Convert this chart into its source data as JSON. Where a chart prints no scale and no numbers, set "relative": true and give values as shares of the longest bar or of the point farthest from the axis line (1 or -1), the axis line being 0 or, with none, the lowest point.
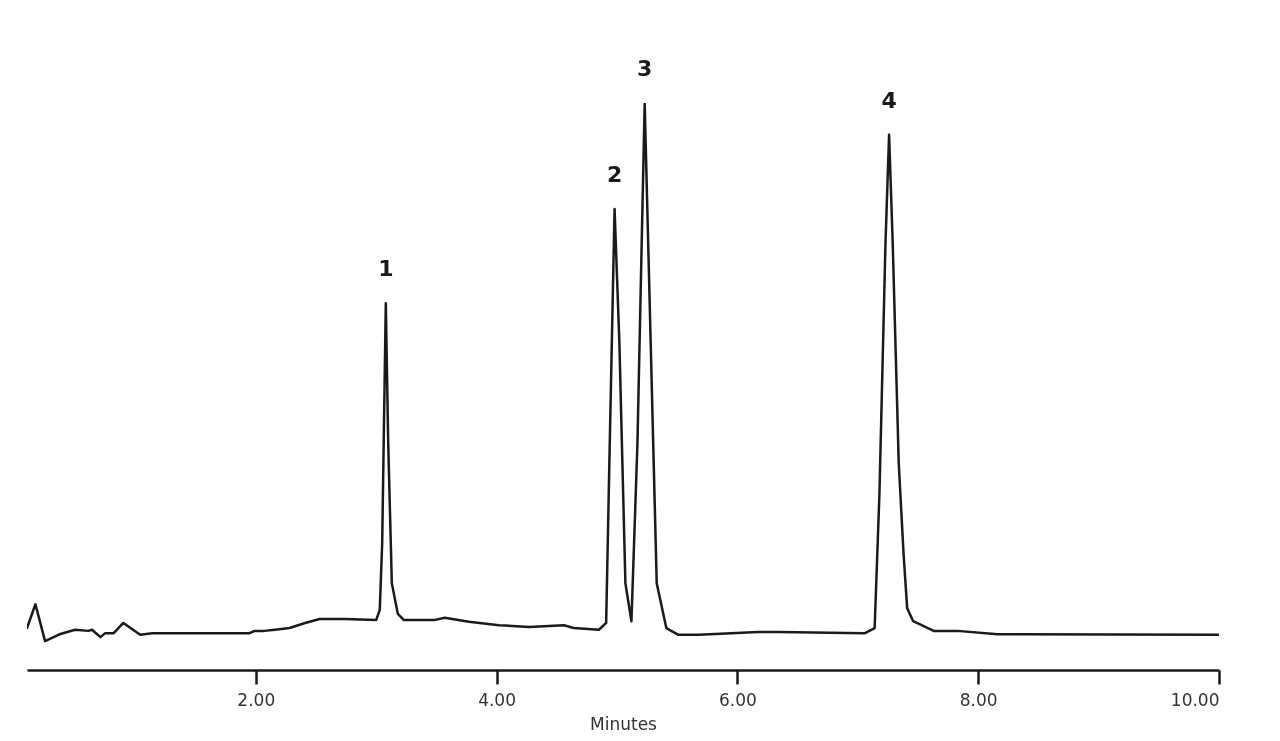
{
  "chart_data": {
    "type": "line",
    "relative": true,
    "xlabel": "Minutes",
    "xlim": [
      0.1,
      10
    ],
    "xticks": [
      {
        "value": 2,
        "label": "2.00"
      },
      {
        "value": 4,
        "label": "4.00"
      },
      {
        "value": 6,
        "label": "6.00"
      },
      {
        "value": 8,
        "label": "8.00"
      },
      {
        "value": 10,
        "label": "10.00"
      }
    ],
    "grid": false,
    "marker": "none",
    "line_style": "solid",
    "series": [
      {
        "color": "#1a1a1a",
        "x": [
          0.1,
          0.17,
          0.25,
          0.37,
          0.5,
          0.61,
          0.64,
          0.71,
          0.75,
          0.82,
          0.9,
          0.96,
          1.04,
          1.14,
          1.95,
          1.99,
          2.07,
          2.16,
          2.28,
          2.41,
          2.53,
          2.74,
          3.0,
          3.03,
          3.05,
          3.08,
          3.1,
          3.13,
          3.18,
          3.23,
          3.48,
          3.57,
          3.77,
          4.02,
          4.27,
          4.56,
          4.64,
          4.85,
          4.91,
          4.94,
          4.98,
          5.02,
          5.07,
          5.12,
          5.17,
          5.23,
          5.28,
          5.33,
          5.41,
          5.51,
          5.68,
          6.17,
          6.34,
          7.06,
          7.14,
          7.18,
          7.23,
          7.26,
          7.29,
          7.34,
          7.38,
          7.41,
          7.46,
          7.63,
          7.83,
          8.16,
          10.0
        ],
        "values": [
          0.074,
          0.116,
          0.051,
          0.063,
          0.071,
          0.069,
          0.071,
          0.058,
          0.065,
          0.065,
          0.083,
          0.074,
          0.062,
          0.065,
          0.065,
          0.069,
          0.069,
          0.071,
          0.074,
          0.083,
          0.09,
          0.09,
          0.088,
          0.106,
          0.224,
          0.647,
          0.4,
          0.153,
          0.099,
          0.088,
          0.088,
          0.092,
          0.085,
          0.079,
          0.076,
          0.079,
          0.074,
          0.071,
          0.083,
          0.4,
          0.813,
          0.577,
          0.153,
          0.086,
          0.4,
          1,
          0.577,
          0.153,
          0.074,
          0.062,
          0.062,
          0.067,
          0.067,
          0.065,
          0.074,
          0.312,
          0.753,
          0.944,
          0.753,
          0.365,
          0.206,
          0.109,
          0.086,
          0.069,
          0.069,
          0.063,
          0.062
        ]
      }
    ],
    "annotations": [
      {
        "text": "1",
        "x": 3.08,
        "y": 0.647
      },
      {
        "text": "2",
        "x": 4.98,
        "y": 0.813
      },
      {
        "text": "3",
        "x": 5.23,
        "y": 1
      },
      {
        "text": "4",
        "x": 7.26,
        "y": 0.944
      }
    ]
  }
}
